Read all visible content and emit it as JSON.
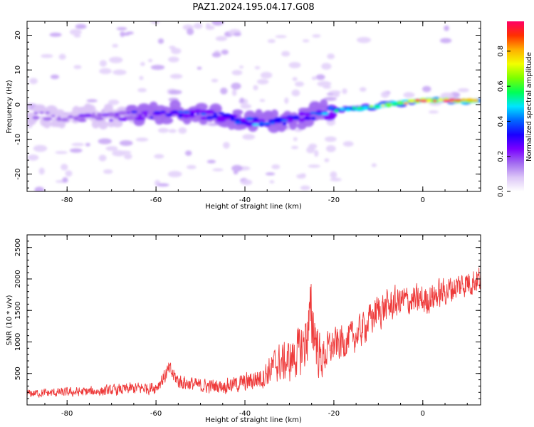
{
  "title": "PAZ1.2024.195.04.17.G08",
  "chart_data": [
    {
      "type": "heatmap",
      "xlabel": "Height of straight line (km)",
      "ylabel": "Frequency (Hz)",
      "xlim": [
        -89,
        13
      ],
      "ylim": [
        -25,
        24
      ],
      "x_ticks": [
        -80,
        -60,
        -40,
        -20,
        0
      ],
      "y_ticks": [
        -20,
        -10,
        0,
        10,
        20
      ],
      "colorbar": {
        "label": "Normalized spectral amplitude",
        "range": [
          0,
          0.97
        ],
        "ticks": [
          0.0,
          0.2,
          0.4,
          0.6,
          0.8
        ],
        "colormap": [
          "#ffffff",
          "#dcc6f7",
          "#a26bf0",
          "#7a00ff",
          "#1a00ff",
          "#0066ff",
          "#00e5ff",
          "#00ff55",
          "#7dff00",
          "#f2ff00",
          "#ffb000",
          "#ff3000",
          "#ff0066"
        ]
      },
      "ridge_frequency_hz": {
        "x": [
          -88,
          -80,
          -72,
          -64,
          -56,
          -48,
          -40,
          -34,
          -28,
          -22,
          -18,
          -12,
          -6,
          0,
          6,
          13
        ],
        "y": [
          -3,
          -3.5,
          -3.8,
          -3,
          -2.5,
          -3,
          -4.5,
          -5,
          -4,
          -2,
          -1.5,
          -0.8,
          0.3,
          1.2,
          1.2,
          1.2
        ]
      },
      "ridge_amplitude": {
        "x": [
          -88,
          -80,
          -72,
          -64,
          -56,
          -48,
          -40,
          -34,
          -28,
          -22,
          -18,
          -12,
          -6,
          0,
          6,
          13
        ],
        "y": [
          0.2,
          0.22,
          0.25,
          0.28,
          0.35,
          0.38,
          0.42,
          0.4,
          0.35,
          0.45,
          0.58,
          0.62,
          0.66,
          0.9,
          0.92,
          0.9
        ]
      },
      "grid": false
    },
    {
      "type": "line",
      "xlabel": "Height of straight line (km)",
      "ylabel": "SNR (10 * v/v)",
      "xlim": [
        -89,
        13
      ],
      "ylim": [
        0,
        2700
      ],
      "x_ticks": [
        -80,
        -60,
        -40,
        -20,
        0
      ],
      "y_ticks": [
        500,
        1000,
        1500,
        2000,
        2500
      ],
      "series": [
        {
          "color": "#ee3a3a",
          "x": [
            -89,
            -85,
            -80,
            -75,
            -70,
            -65,
            -60,
            -57,
            -55,
            -50,
            -45,
            -40,
            -36,
            -33,
            -30,
            -27,
            -25,
            -23,
            -21,
            -18,
            -15,
            -10,
            -5,
            0,
            5,
            10,
            13
          ],
          "y": [
            180,
            190,
            200,
            210,
            230,
            260,
            280,
            550,
            380,
            300,
            300,
            350,
            450,
            650,
            700,
            900,
            1400,
            700,
            900,
            1000,
            1100,
            1500,
            1650,
            1650,
            1800,
            1950,
            2000
          ],
          "spread": [
            110,
            120,
            130,
            140,
            150,
            170,
            180,
            250,
            220,
            200,
            200,
            260,
            350,
            500,
            600,
            750,
            1100,
            600,
            500,
            500,
            450,
            500,
            450,
            450,
            400,
            400,
            400
          ]
        }
      ],
      "grid": false
    }
  ]
}
